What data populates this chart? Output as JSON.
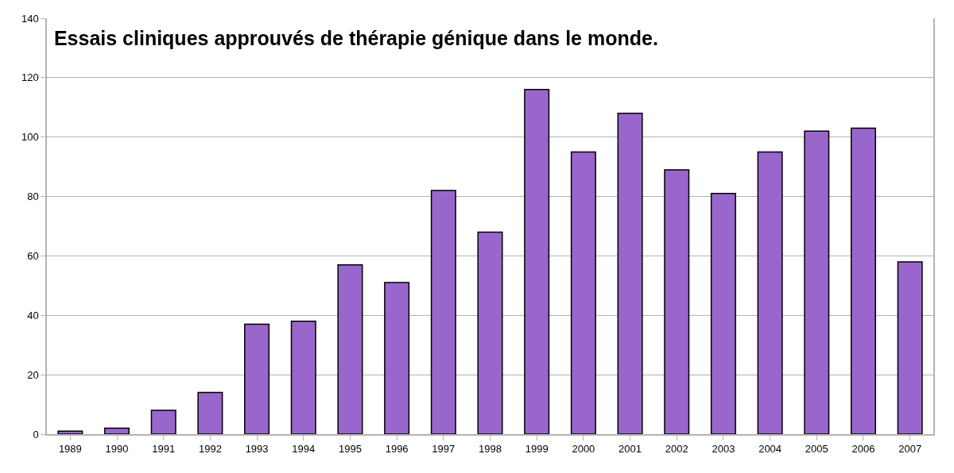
{
  "chart_data": {
    "type": "bar",
    "title": "Essais cliniques approuvés de thérapie génique dans le monde.",
    "categories": [
      "1989",
      "1990",
      "1991",
      "1992",
      "1993",
      "1994",
      "1995",
      "1996",
      "1997",
      "1998",
      "1999",
      "2000",
      "2001",
      "2002",
      "2003",
      "2004",
      "2005",
      "2006",
      "2007"
    ],
    "values": [
      1,
      2,
      8,
      14,
      37,
      38,
      57,
      51,
      82,
      68,
      116,
      95,
      108,
      89,
      81,
      95,
      102,
      103,
      58
    ],
    "color": "#9966cc",
    "ylim": [
      0,
      140
    ],
    "yticks": [
      0,
      20,
      40,
      60,
      80,
      100,
      120,
      140
    ],
    "grid": "y"
  }
}
